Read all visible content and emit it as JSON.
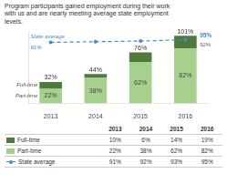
{
  "chart_data": {
    "type": "bar",
    "title": "Program participants gained employment during their work\nwith us and are nearly meeting average state employment\nlevels.",
    "categories": [
      "2013",
      "2014",
      "2015",
      "2016"
    ],
    "stacked": true,
    "series": [
      {
        "name": "Part-time",
        "color": "#a8d08d",
        "values": [
          22,
          38,
          62,
          82
        ],
        "data_labels": true,
        "value_labels": [
          "22%",
          "38%",
          "62%",
          "82%"
        ]
      },
      {
        "name": "Full-time",
        "color": "#4e7a3e",
        "values": [
          10,
          6,
          14,
          19
        ]
      },
      {
        "name": "State average",
        "type": "line",
        "color": "#4a86c8",
        "values": [
          91,
          92,
          93,
          95
        ],
        "marker": "circle",
        "line_style": "dashed"
      }
    ],
    "totals": [
      32,
      44,
      76,
      101
    ],
    "total_labels": [
      "32%",
      "44%",
      "76%",
      "101%"
    ],
    "annotations": [
      {
        "text": "Full-time",
        "series": "Full-time",
        "category": "2013",
        "color": "#555555"
      },
      {
        "text": "Part-time",
        "series": "Part-time",
        "category": "2013",
        "color": "#555555"
      },
      {
        "text": "State average",
        "series": "State average",
        "category": "2013",
        "color": "#4a86c8"
      },
      {
        "text": "91%",
        "series": "State average",
        "category": "2013",
        "color": "#4a86c8"
      },
      {
        "text": "95%",
        "series": "State average",
        "category": "2016",
        "color": "#4a86c8"
      },
      {
        "text": "92%",
        "series": "State average",
        "category": "2016",
        "color": "#666666"
      }
    ],
    "ylim": [
      0,
      108
    ],
    "grid": false,
    "legend": false,
    "tick_labels": "x",
    "table": {
      "columns": [
        "2013",
        "2014",
        "2015",
        "2016"
      ],
      "rows": [
        {
          "name": "Full-time",
          "values": [
            10,
            6,
            14,
            19
          ],
          "value_labels": [
            "10%",
            "6%",
            "14%",
            "19%"
          ]
        },
        {
          "name": "Part-time",
          "values": [
            22,
            38,
            62,
            82
          ],
          "value_labels": [
            "22%",
            "38%",
            "62%",
            "82%"
          ]
        },
        {
          "name": "State average",
          "values": [
            91,
            92,
            93,
            95
          ],
          "value_labels": [
            "91%",
            "92%",
            "93%",
            "95%"
          ]
        }
      ]
    }
  }
}
